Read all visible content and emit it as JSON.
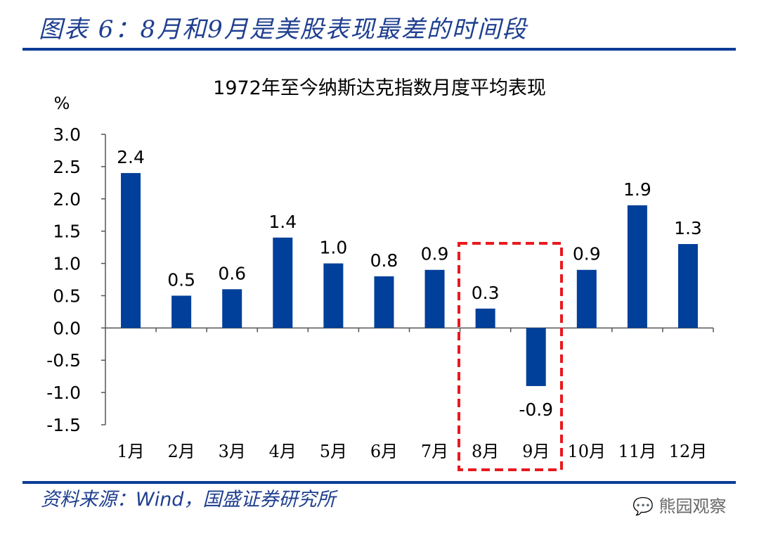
{
  "header": {
    "title": "图表 6：8月和9月是美股表现最差的时间段"
  },
  "footer": {
    "source": "资料来源：Wind，国盛证券研究所",
    "watermark": "熊园观察"
  },
  "colors": {
    "bar": "#003f9a",
    "highlight": "#e8191e",
    "rule": "#0c3c96"
  },
  "chart_data": {
    "type": "bar",
    "title": "1972年至今纳斯达克指数月度平均表现",
    "ylabel": "%",
    "xlabel": "",
    "categories": [
      "1月",
      "2月",
      "3月",
      "4月",
      "5月",
      "6月",
      "7月",
      "8月",
      "9月",
      "10月",
      "11月",
      "12月"
    ],
    "values": [
      2.4,
      0.5,
      0.6,
      1.4,
      1.0,
      0.8,
      0.9,
      0.3,
      -0.9,
      0.9,
      1.9,
      1.3
    ],
    "data_labels": [
      "2.4",
      "0.5",
      "0.6",
      "1.4",
      "1.0",
      "0.8",
      "0.9",
      "0.3",
      "-0.9",
      "0.9",
      "1.9",
      "1.3"
    ],
    "ylim": [
      -1.5,
      3.0
    ],
    "yticks": [
      "3.0",
      "2.5",
      "2.0",
      "1.5",
      "1.0",
      "0.5",
      "0.0",
      "-0.5",
      "-1.0",
      "-1.5"
    ],
    "grid": false,
    "legend": "none",
    "annotation": {
      "type": "dashed-box",
      "covers": [
        "8月",
        "9月"
      ]
    }
  }
}
